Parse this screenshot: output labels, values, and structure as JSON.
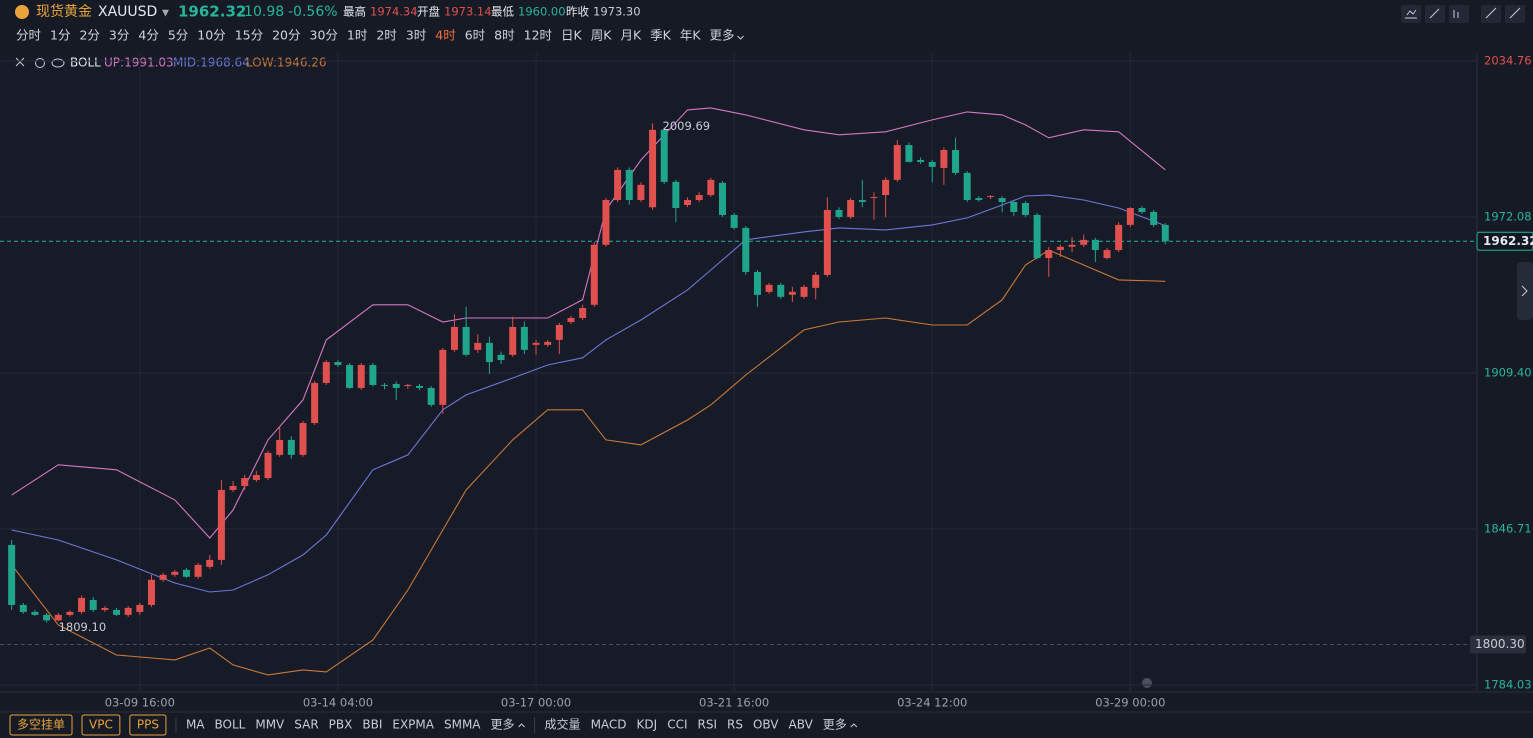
{
  "header": {
    "name": "现货黄金",
    "code": "XAUUSD",
    "price": "1962.32",
    "change": "-10.98",
    "change_pct": "-0.56%",
    "stats": [
      {
        "label": "最高",
        "value": "1974.34",
        "color": "#e0504f"
      },
      {
        "label": "开盘",
        "value": "1973.14",
        "color": "#e0504f"
      },
      {
        "label": "最低",
        "value": "1960.00",
        "color": "#26b59b"
      },
      {
        "label": "昨收",
        "value": "1973.30",
        "color": "#c9ccd6"
      }
    ]
  },
  "timeframes": [
    "分时",
    "1分",
    "2分",
    "3分",
    "4分",
    "5分",
    "10分",
    "15分",
    "20分",
    "30分",
    "1时",
    "2时",
    "3时",
    "4时",
    "6时",
    "8时",
    "12时",
    "日K",
    "周K",
    "月K",
    "季K",
    "年K",
    "更多"
  ],
  "active_timeframe": 13,
  "indicator": {
    "name": "BOLL",
    "up": "UP:1991.03",
    "mid": "MID:1968.64",
    "low": "LOW:1946.26"
  },
  "toolbar": {
    "buttons": [
      "多空挂单",
      "VPC",
      "PPS"
    ],
    "main_indicators": [
      "MA",
      "BOLL",
      "MMV",
      "SAR",
      "PBX",
      "BBI",
      "EXPMA",
      "SMMA",
      "更多"
    ],
    "sub_indicators": [
      "成交量",
      "MACD",
      "KDJ",
      "CCI",
      "RSI",
      "RS",
      "OBV",
      "ABV",
      "更多"
    ]
  },
  "chart_data": {
    "type": "candlestick",
    "up_color": "#e0504f",
    "down_color": "#1fa58c",
    "open": [
      1840.3,
      1816.2,
      1813.4,
      1812.2,
      1810.0,
      1812.2,
      1813.4,
      1818.2,
      1814.2,
      1814.2,
      1812.2,
      1813.4,
      1816.2,
      1826.3,
      1828.3,
      1830.3,
      1827.5,
      1831.5,
      1834.3,
      1862.4,
      1864.0,
      1866.4,
      1867.2,
      1876.5,
      1882.5,
      1876.5,
      1889.3,
      1905.4,
      1913.8,
      1912.6,
      1903.4,
      1912.6,
      1904.6,
      1905.0,
      1904.2,
      1904.2,
      1903.4,
      1896.6,
      1918.7,
      1927.9,
      1918.7,
      1921.5,
      1916.7,
      1916.7,
      1927.9,
      1920.7,
      1920.7,
      1922.7,
      1929.9,
      1931.5,
      1936.8,
      1960.9,
      1978.9,
      1991.0,
      1978.9,
      1976.0,
      2007.1,
      1986.2,
      1976.9,
      1978.9,
      1980.9,
      1985.8,
      1972.9,
      1967.7,
      1950.0,
      1942.0,
      1944.8,
      1940.8,
      1940.0,
      1943.6,
      1948.8,
      1974.9,
      1972.1,
      1978.9,
      1979.7,
      1980.9,
      1987.0,
      2001.0,
      1995.0,
      1994.2,
      1991.8,
      1999.0,
      1989.8,
      1979.7,
      1980.1,
      1979.7,
      1978.1,
      1977.7,
      1972.9,
      1955.6,
      1958.8,
      1960.1,
      1960.9,
      1962.9,
      1955.6,
      1958.8,
      1968.9,
      1975.7,
      1974.1,
      1968.9
    ],
    "high": [
      1842.3,
      1817.0,
      1814.2,
      1813.0,
      1813.0,
      1814.0,
      1820.0,
      1819.4,
      1815.8,
      1815.0,
      1815.8,
      1817.0,
      1828.3,
      1829.1,
      1830.3,
      1831.1,
      1833.1,
      1836.3,
      1866.4,
      1866.0,
      1868.4,
      1870.0,
      1878.1,
      1888.0,
      1884.0,
      1890.1,
      1906.2,
      1914.6,
      1914.6,
      1913.4,
      1913.4,
      1913.4,
      1905.4,
      1906.0,
      1905.0,
      1905.0,
      1904.2,
      1919.5,
      1933.0,
      1936.0,
      1925.0,
      1924.0,
      1918.0,
      1932.0,
      1930.0,
      1922.7,
      1922.7,
      1929.5,
      1932.3,
      1936.8,
      1962.0,
      1979.7,
      1992.0,
      1992.0,
      1986.0,
      2009.69,
      2008.0,
      1987.0,
      1980.0,
      1982.0,
      1987.8,
      1986.6,
      1973.7,
      1968.5,
      1950.8,
      1945.6,
      1945.6,
      1944.0,
      1944.8,
      1950.0,
      1980.0,
      1976.0,
      1979.7,
      1987.0,
      1982.0,
      1988.0,
      2003.0,
      2002.0,
      1996.0,
      1995.0,
      2000.0,
      2004.0,
      1990.6,
      1980.5,
      1980.9,
      1980.5,
      1978.9,
      1978.5,
      1973.7,
      1960.0,
      1961.0,
      1964.0,
      1965.0,
      1963.7,
      1959.6,
      1970.0,
      1976.0,
      1976.5,
      1974.9,
      1969.7
    ],
    "low": [
      1814.2,
      1812.6,
      1811.8,
      1809.1,
      1809.6,
      1811.5,
      1812.6,
      1813.4,
      1813.4,
      1811.8,
      1811.4,
      1812.2,
      1815.4,
      1825.5,
      1827.5,
      1827.1,
      1826.7,
      1830.7,
      1832.3,
      1861.6,
      1862.4,
      1865.6,
      1866.4,
      1875.7,
      1874.9,
      1875.7,
      1888.5,
      1904.6,
      1911.8,
      1903.0,
      1902.6,
      1904.0,
      1902.8,
      1898.5,
      1903.0,
      1902.6,
      1895.8,
      1893.0,
      1917.9,
      1916.0,
      1917.5,
      1909.0,
      1913.0,
      1915.9,
      1917.0,
      1916.7,
      1919.9,
      1917.0,
      1929.1,
      1930.7,
      1936.0,
      1960.1,
      1978.1,
      1977.0,
      1978.1,
      1975.0,
      1985.4,
      1970.0,
      1976.1,
      1978.1,
      1980.1,
      1972.1,
      1967.0,
      1948.8,
      1936.0,
      1941.2,
      1939.2,
      1938.0,
      1939.2,
      1939.0,
      1948.0,
      1971.3,
      1971.3,
      1976.0,
      1971.0,
      1972.0,
      1986.2,
      1994.0,
      1993.4,
      1986.0,
      1985.0,
      1989.0,
      1978.1,
      1978.1,
      1979.3,
      1974.0,
      1972.5,
      1972.1,
      1955.0,
      1948.0,
      1956.0,
      1958.0,
      1960.1,
      1954.0,
      1955.0,
      1958.0,
      1968.1,
      1973.3,
      1968.1,
      1961.0
    ],
    "close": [
      1816.2,
      1813.4,
      1812.2,
      1810.0,
      1812.2,
      1813.4,
      1819.0,
      1814.2,
      1815.0,
      1812.2,
      1815.0,
      1816.2,
      1826.3,
      1828.3,
      1829.5,
      1827.5,
      1832.3,
      1834.3,
      1862.4,
      1864.0,
      1867.2,
      1868.4,
      1877.3,
      1882.5,
      1876.5,
      1889.3,
      1905.4,
      1913.8,
      1912.6,
      1903.4,
      1912.6,
      1904.6,
      1904.2,
      1903.4,
      1904.6,
      1903.4,
      1896.6,
      1918.7,
      1927.9,
      1916.7,
      1921.5,
      1913.8,
      1914.6,
      1927.9,
      1918.7,
      1921.5,
      1921.9,
      1928.7,
      1931.5,
      1935.5,
      1960.9,
      1978.9,
      1991.0,
      1978.9,
      1985.0,
      2007.1,
      1986.2,
      1975.7,
      1978.9,
      1980.9,
      1987.0,
      1972.9,
      1967.7,
      1950.0,
      1940.8,
      1944.8,
      1940.0,
      1942.0,
      1944.0,
      1948.8,
      1974.9,
      1972.1,
      1978.9,
      1978.1,
      1980.1,
      1987.0,
      2001.0,
      1994.2,
      1994.2,
      1992.2,
      1999.0,
      1989.8,
      1978.9,
      1978.9,
      1980.5,
      1978.1,
      1974.1,
      1972.9,
      1955.6,
      1958.8,
      1960.1,
      1960.9,
      1962.9,
      1958.8,
      1958.8,
      1968.9,
      1975.7,
      1974.1,
      1968.9,
      1962.32
    ],
    "bands": [
      {
        "name": "UP",
        "color": "#d477c5",
        "x": [
          0,
          4,
          9,
          14,
          17,
          19,
          22,
          25,
          27,
          31,
          34,
          37,
          39,
          43,
          46,
          49,
          51,
          54,
          58,
          60,
          63,
          68,
          71,
          75,
          79,
          82,
          85,
          87,
          89,
          92,
          95,
          99
        ],
        "values": [
          1860.4,
          1872.5,
          1870.5,
          1858.4,
          1843.1,
          1854.4,
          1882.5,
          1898.6,
          1922.7,
          1936.8,
          1936.8,
          1929.9,
          1931.5,
          1931.5,
          1931.5,
          1938.8,
          1974.9,
          1995.0,
          2015.1,
          2015.9,
          2013.1,
          2007.1,
          2005.1,
          2006.3,
          2011.1,
          2014.3,
          2013.1,
          2009.1,
          2003.9,
          2007.1,
          2006.3,
          1991.03
        ]
      },
      {
        "name": "MID",
        "color": "#6b78d9",
        "x": [
          0,
          4,
          9,
          14,
          17,
          19,
          22,
          25,
          27,
          31,
          34,
          37,
          39,
          43,
          46,
          49,
          51,
          54,
          58,
          60,
          63,
          68,
          71,
          75,
          79,
          82,
          85,
          87,
          89,
          92,
          95,
          99
        ],
        "values": [
          1846.3,
          1842.3,
          1834.3,
          1825.0,
          1821.4,
          1822.2,
          1828.3,
          1836.3,
          1844.3,
          1870.5,
          1876.5,
          1894.6,
          1900.6,
          1907.4,
          1912.6,
          1915.5,
          1922.7,
          1930.7,
          1942.8,
          1950.8,
          1962.9,
          1966.1,
          1967.7,
          1966.9,
          1968.9,
          1971.7,
          1976.9,
          1980.5,
          1980.9,
          1978.9,
          1975.7,
          1968.64
        ]
      },
      {
        "name": "LOW",
        "color": "#c87838",
        "x": [
          0,
          4,
          9,
          14,
          17,
          19,
          22,
          25,
          27,
          31,
          34,
          37,
          39,
          43,
          46,
          49,
          51,
          54,
          58,
          60,
          63,
          68,
          71,
          75,
          79,
          82,
          85,
          87,
          89,
          92,
          95,
          99
        ],
        "values": [
          1832.3,
          1808.2,
          1796.1,
          1794.1,
          1798.9,
          1792.1,
          1788.1,
          1790.1,
          1789.3,
          1802.1,
          1822.2,
          1846.3,
          1862.4,
          1882.5,
          1894.6,
          1894.6,
          1882.5,
          1880.5,
          1890.5,
          1896.6,
          1908.6,
          1926.7,
          1929.9,
          1931.5,
          1928.7,
          1928.7,
          1938.8,
          1952.8,
          1958.8,
          1952.8,
          1946.8,
          1946.26
        ]
      }
    ],
    "xlim": [
      -1,
      125.75
    ],
    "xticks": [
      {
        "value": 11,
        "label": "03-09 16:00"
      },
      {
        "value": 28,
        "label": "03-14 04:00"
      },
      {
        "value": 45,
        "label": "03-17 00:00"
      },
      {
        "value": 62,
        "label": "03-21 16:00"
      },
      {
        "value": 79,
        "label": "03-24 12:00"
      },
      {
        "value": 96,
        "label": "03-29 00:00"
      }
    ],
    "ylim": [
      1781.22,
      2038.38
    ],
    "yticks": [
      2034.76,
      1972.08,
      {
        "value": 1909.4,
        "label": "1909.40"
      },
      1846.71,
      1784.03
    ],
    "grid": true,
    "price_lines": [
      {
        "value": 1962.32,
        "label": "1962.32",
        "color": "#26b59b"
      },
      {
        "value": 1800.3,
        "label": "1800.30",
        "color": "#4a5060"
      }
    ],
    "annotations": [
      {
        "value": 2009.69,
        "label": "2009.69",
        "at": "high"
      },
      {
        "value": 1809.1,
        "label": "1809.10",
        "at": "low"
      }
    ]
  }
}
